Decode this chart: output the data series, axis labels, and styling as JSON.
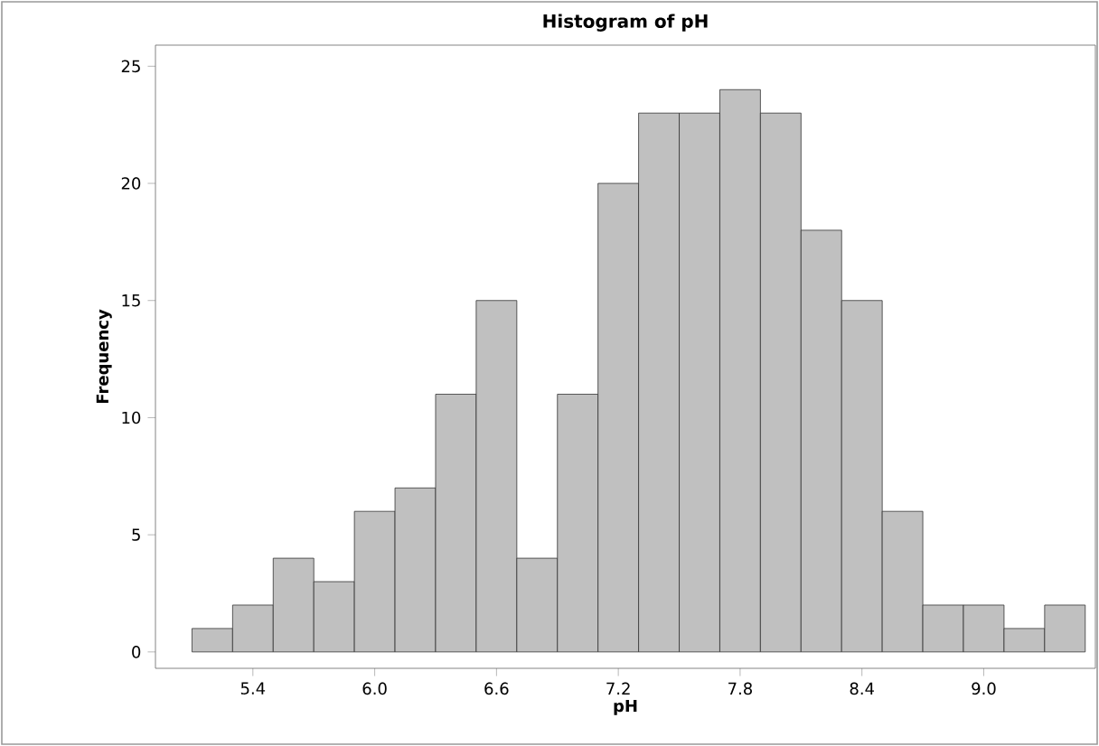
{
  "chart_data": {
    "type": "histogram",
    "title": "Histogram of pH",
    "xlabel": "pH",
    "ylabel": "Frequency",
    "bins": [
      5.1,
      5.3,
      5.5,
      5.7,
      5.9,
      6.1,
      6.3,
      6.5,
      6.7,
      6.9,
      7.1,
      7.3,
      7.5,
      7.7,
      7.9,
      8.1,
      8.3,
      8.5,
      8.7,
      8.9,
      9.1,
      9.3,
      9.5
    ],
    "values": [
      1,
      2,
      4,
      3,
      6,
      7,
      11,
      15,
      4,
      11,
      20,
      23,
      23,
      24,
      23,
      18,
      15,
      6,
      2,
      2,
      1,
      2
    ],
    "color": "#c0c0c0",
    "xlim": [
      4.92,
      9.55
    ],
    "ylim": [
      -0.7,
      25.9
    ],
    "xticks": [
      5.4,
      {
        "value": 6.0,
        "label": "6.0"
      },
      6.6,
      7.2,
      7.8,
      8.4,
      {
        "value": 9.0,
        "label": "9.0"
      }
    ],
    "yticks": [
      0,
      5,
      10,
      15,
      20,
      25
    ],
    "grid": false
  }
}
